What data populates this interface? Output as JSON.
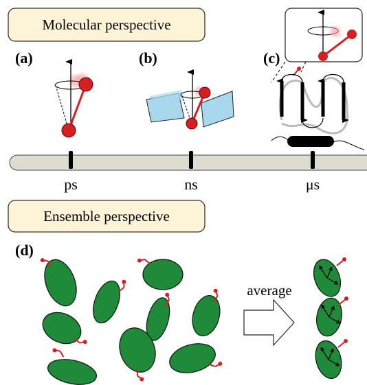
{
  "molecular": {
    "title": "Molecular perspective",
    "panels": [
      {
        "label": "(a)"
      },
      {
        "label": "(b)"
      },
      {
        "label": "(c)"
      }
    ]
  },
  "timeline": [
    "ps",
    "ns",
    "μs"
  ],
  "ensemble": {
    "title": "Ensemble perspective",
    "panel_label": "(d)",
    "arrow_label": "average"
  }
}
